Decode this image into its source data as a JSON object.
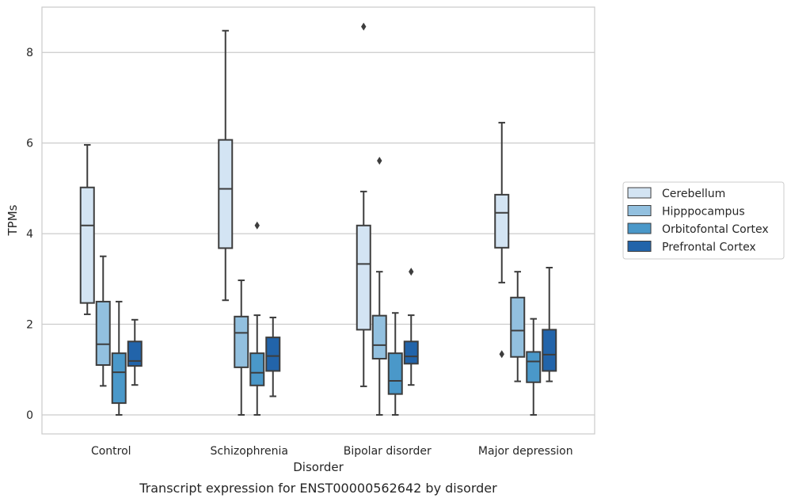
{
  "chart_data": {
    "type": "box",
    "caption": "Transcript expression for ENST00000562642 by disorder",
    "xlabel": "Disorder",
    "ylabel": "TPMs",
    "ylim": [
      -0.42,
      9.0
    ],
    "yticks": [
      0,
      2,
      4,
      6,
      8
    ],
    "grid": "horizontal",
    "legend_position": "right",
    "categories": [
      "Control",
      "Schizophrenia",
      "Bipolar disorder",
      "Major depression"
    ],
    "series": [
      {
        "name": "Cerebellum",
        "color": "#d3e4f3",
        "boxes": [
          {
            "whislo": 2.22,
            "q1": 2.47,
            "med": 4.18,
            "q3": 5.02,
            "whishi": 5.96,
            "fliers": []
          },
          {
            "whislo": 2.53,
            "q1": 3.68,
            "med": 4.99,
            "q3": 6.07,
            "whishi": 8.48,
            "fliers": []
          },
          {
            "whislo": 0.63,
            "q1": 1.88,
            "med": 3.33,
            "q3": 4.18,
            "whishi": 4.93,
            "fliers": [
              8.57
            ]
          },
          {
            "whislo": 2.92,
            "q1": 3.69,
            "med": 4.46,
            "q3": 4.86,
            "whishi": 6.45,
            "fliers": [
              1.34
            ]
          }
        ]
      },
      {
        "name": "Hipppocampus",
        "color": "#92c0df",
        "boxes": [
          {
            "whislo": 0.64,
            "q1": 1.1,
            "med": 1.56,
            "q3": 2.5,
            "whishi": 3.5,
            "fliers": []
          },
          {
            "whislo": 0.0,
            "q1": 1.05,
            "med": 1.81,
            "q3": 2.17,
            "whishi": 2.97,
            "fliers": []
          },
          {
            "whislo": 0.0,
            "q1": 1.24,
            "med": 1.54,
            "q3": 2.19,
            "whishi": 3.16,
            "fliers": [
              5.61
            ]
          },
          {
            "whislo": 0.74,
            "q1": 1.28,
            "med": 1.86,
            "q3": 2.59,
            "whishi": 3.16,
            "fliers": []
          }
        ]
      },
      {
        "name": "Orbitofontal Cortex",
        "color": "#4a98c9",
        "boxes": [
          {
            "whislo": 0.0,
            "q1": 0.26,
            "med": 0.94,
            "q3": 1.36,
            "whishi": 2.5,
            "fliers": []
          },
          {
            "whislo": 0.0,
            "q1": 0.65,
            "med": 0.93,
            "q3": 1.36,
            "whishi": 2.2,
            "fliers": [
              4.18
            ]
          },
          {
            "whislo": 0.0,
            "q1": 0.46,
            "med": 0.75,
            "q3": 1.36,
            "whishi": 2.25,
            "fliers": []
          },
          {
            "whislo": 0.0,
            "q1": 0.72,
            "med": 1.18,
            "q3": 1.39,
            "whishi": 2.12,
            "fliers": []
          }
        ]
      },
      {
        "name": "Prefrontal Cortex",
        "color": "#2264aa",
        "boxes": [
          {
            "whislo": 0.66,
            "q1": 1.08,
            "med": 1.19,
            "q3": 1.62,
            "whishi": 2.1,
            "fliers": []
          },
          {
            "whislo": 0.41,
            "q1": 0.97,
            "med": 1.3,
            "q3": 1.71,
            "whishi": 2.15,
            "fliers": []
          },
          {
            "whislo": 0.66,
            "q1": 1.13,
            "med": 1.29,
            "q3": 1.62,
            "whishi": 2.2,
            "fliers": [
              3.16
            ]
          },
          {
            "whislo": 0.74,
            "q1": 0.97,
            "med": 1.33,
            "q3": 1.88,
            "whishi": 3.25,
            "fliers": []
          }
        ]
      }
    ]
  }
}
